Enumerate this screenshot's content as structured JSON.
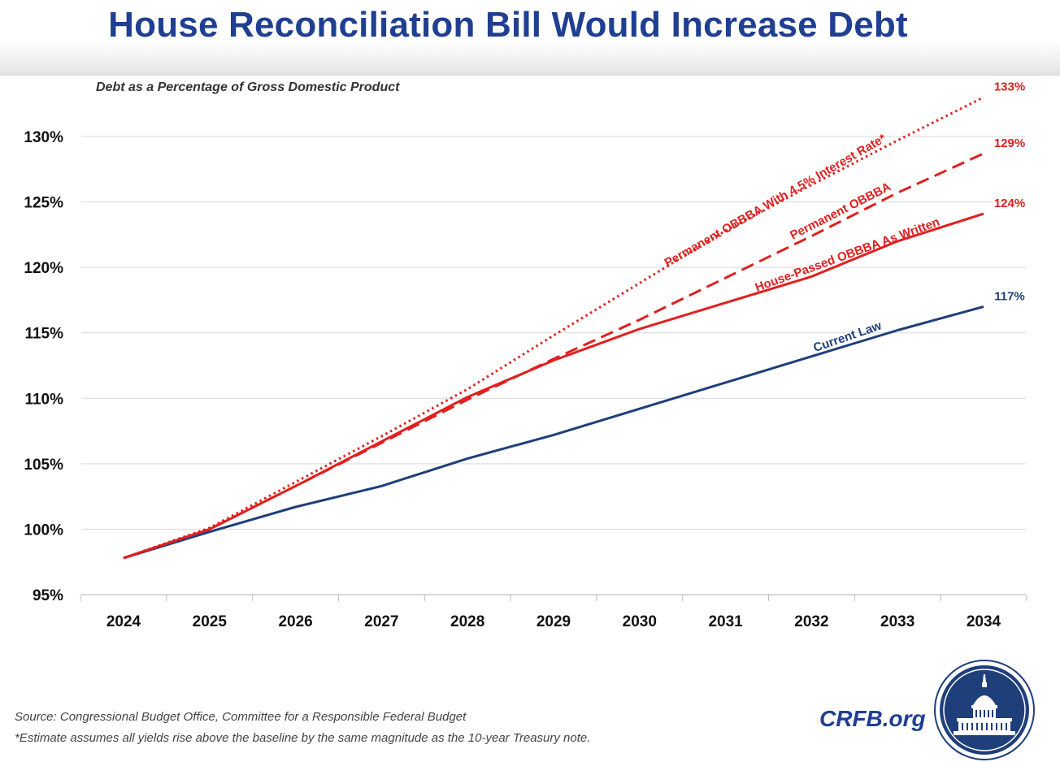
{
  "header": {
    "title": "House Reconciliation Bill Would Increase Debt"
  },
  "chart_data": {
    "type": "line",
    "title": "House Reconciliation Bill Would Increase Debt",
    "subtitle": "Debt as a Percentage of Gross Domestic Product",
    "xlabel": "",
    "ylabel": "",
    "x": [
      2024,
      2025,
      2026,
      2027,
      2028,
      2029,
      2030,
      2031,
      2032,
      2033,
      2034
    ],
    "x_tick_labels": [
      "2024",
      "2025",
      "2026",
      "2027",
      "2028",
      "2029",
      "2030",
      "2031",
      "2032",
      "2033",
      "2034"
    ],
    "y_ticks": [
      95,
      100,
      105,
      110,
      115,
      120,
      125,
      130
    ],
    "y_tick_labels": [
      "95%",
      "100%",
      "105%",
      "110%",
      "115%",
      "120%",
      "125%",
      "130%"
    ],
    "ylim": [
      95,
      130
    ],
    "grid": "horizontal",
    "legend": "none",
    "series": [
      {
        "name": "Current Law",
        "color": "#1f3f7a",
        "style": "solid",
        "values": [
          97.8,
          99.8,
          101.7,
          103.3,
          105.4,
          107.2,
          109.2,
          111.2,
          113.2,
          115.2,
          117.0
        ],
        "end_label": "117%"
      },
      {
        "name": "House-Passed OBBBA As Written",
        "color": "#e0201f",
        "style": "solid",
        "values": [
          97.8,
          100.0,
          103.3,
          106.7,
          110.1,
          112.9,
          115.3,
          117.3,
          119.3,
          122.0,
          124.1
        ],
        "end_label": "124%"
      },
      {
        "name": "Permanent OBBBA",
        "color": "#e0201f",
        "style": "dashed",
        "values": [
          97.8,
          100.0,
          103.3,
          106.6,
          109.9,
          113.0,
          116.0,
          119.2,
          122.4,
          125.7,
          128.7
        ],
        "end_label": "129%"
      },
      {
        "name": "Permanent OBBBA With 4.5% Interest Rate*",
        "color": "#e0201f",
        "style": "dotted",
        "values": [
          97.8,
          100.1,
          103.6,
          107.1,
          110.7,
          114.8,
          118.8,
          122.8,
          126.3,
          129.7,
          133.0
        ],
        "end_label": "133%"
      }
    ]
  },
  "footer": {
    "source": "Source: Congressional Budget Office, Committee for a Responsible Federal Budget",
    "note": "*Estimate assumes all yields rise above the baseline by the same magnitude as the 10-year Treasury note.",
    "brand": "CRFB.org"
  }
}
